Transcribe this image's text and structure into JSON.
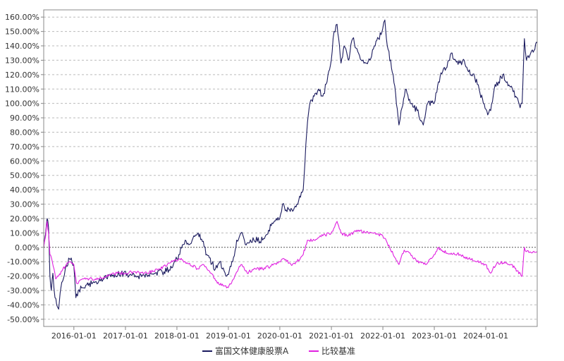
{
  "chart_data": {
    "type": "line",
    "y_ticks": [
      "160.00%",
      "150.00%",
      "140.00%",
      "130.00%",
      "120.00%",
      "110.00%",
      "100.00%",
      "90.00%",
      "80.00%",
      "70.00%",
      "60.00%",
      "50.00%",
      "40.00%",
      "30.00%",
      "20.00%",
      "10.00%",
      "0.00%",
      "-10.00%",
      "-20.00%",
      "-30.00%",
      "-40.00%",
      "-50.00%"
    ],
    "x_ticks": [
      "2016-01-01",
      "2017-01-01",
      "2018-01-01",
      "2019-01-01",
      "2020-01-01",
      "2021-01-01",
      "2022-01-01",
      "2023-01-01",
      "2024-01-01"
    ],
    "ylim": [
      -55,
      165
    ],
    "xlim": [
      "2015-06-01",
      "2024-12-31"
    ],
    "grid": true,
    "legend_position": "bottom",
    "series": [
      {
        "name": "富国文体健康股票A",
        "color": "#1a1a5e",
        "points": [
          [
            "2015-06-01",
            0
          ],
          [
            "2015-06-15",
            10
          ],
          [
            "2015-06-25",
            20
          ],
          [
            "2015-07-05",
            14
          ],
          [
            "2015-07-15",
            -20
          ],
          [
            "2015-07-25",
            -30
          ],
          [
            "2015-08-05",
            -18
          ],
          [
            "2015-08-20",
            -35
          ],
          [
            "2015-09-01",
            -40
          ],
          [
            "2015-09-15",
            -43
          ],
          [
            "2015-10-01",
            -28
          ],
          [
            "2015-11-01",
            -15
          ],
          [
            "2015-12-01",
            -8
          ],
          [
            "2015-12-31",
            -12
          ],
          [
            "2016-01-15",
            -35
          ],
          [
            "2016-02-01",
            -30
          ],
          [
            "2016-03-01",
            -28
          ],
          [
            "2016-04-01",
            -26
          ],
          [
            "2016-06-01",
            -24
          ],
          [
            "2016-08-01",
            -22
          ],
          [
            "2016-10-01",
            -20
          ],
          [
            "2016-12-01",
            -18
          ],
          [
            "2017-02-01",
            -19
          ],
          [
            "2017-04-01",
            -20
          ],
          [
            "2017-06-01",
            -19
          ],
          [
            "2017-08-01",
            -18
          ],
          [
            "2017-10-01",
            -17
          ],
          [
            "2017-12-01",
            -14
          ],
          [
            "2018-01-15",
            -5
          ],
          [
            "2018-03-01",
            5
          ],
          [
            "2018-04-01",
            2
          ],
          [
            "2018-05-01",
            8
          ],
          [
            "2018-06-01",
            10
          ],
          [
            "2018-07-01",
            4
          ],
          [
            "2018-08-01",
            -5
          ],
          [
            "2018-10-01",
            -15
          ],
          [
            "2018-11-01",
            -10
          ],
          [
            "2018-12-20",
            -20
          ],
          [
            "2019-02-01",
            -10
          ],
          [
            "2019-03-01",
            5
          ],
          [
            "2019-04-01",
            10
          ],
          [
            "2019-05-01",
            2
          ],
          [
            "2019-07-01",
            5
          ],
          [
            "2019-09-01",
            5
          ],
          [
            "2019-11-01",
            15
          ],
          [
            "2019-12-31",
            20
          ],
          [
            "2020-01-20",
            30
          ],
          [
            "2020-02-15",
            26
          ],
          [
            "2020-04-01",
            25
          ],
          [
            "2020-05-01",
            30
          ],
          [
            "2020-06-15",
            40
          ],
          [
            "2020-07-10",
            80
          ],
          [
            "2020-08-01",
            100
          ],
          [
            "2020-09-01",
            105
          ],
          [
            "2020-10-01",
            110
          ],
          [
            "2020-11-01",
            105
          ],
          [
            "2020-12-01",
            115
          ],
          [
            "2020-12-31",
            130
          ],
          [
            "2021-01-20",
            150
          ],
          [
            "2021-02-10",
            155
          ],
          [
            "2021-03-10",
            128
          ],
          [
            "2021-04-01",
            140
          ],
          [
            "2021-05-01",
            130
          ],
          [
            "2021-06-01",
            145
          ],
          [
            "2021-07-01",
            138
          ],
          [
            "2021-08-01",
            130
          ],
          [
            "2021-09-01",
            128
          ],
          [
            "2021-10-01",
            130
          ],
          [
            "2021-11-01",
            140
          ],
          [
            "2021-12-01",
            145
          ],
          [
            "2021-12-31",
            152
          ],
          [
            "2022-01-15",
            158
          ],
          [
            "2022-02-01",
            140
          ],
          [
            "2022-03-15",
            120
          ],
          [
            "2022-04-25",
            85
          ],
          [
            "2022-05-10",
            95
          ],
          [
            "2022-06-15",
            110
          ],
          [
            "2022-07-15",
            100
          ],
          [
            "2022-09-01",
            95
          ],
          [
            "2022-10-15",
            85
          ],
          [
            "2022-11-15",
            100
          ],
          [
            "2022-12-31",
            100
          ],
          [
            "2023-01-31",
            115
          ],
          [
            "2023-03-01",
            122
          ],
          [
            "2023-04-01",
            125
          ],
          [
            "2023-05-01",
            135
          ],
          [
            "2023-06-01",
            130
          ],
          [
            "2023-07-01",
            128
          ],
          [
            "2023-08-01",
            130
          ],
          [
            "2023-09-01",
            122
          ],
          [
            "2023-10-15",
            118
          ],
          [
            "2023-11-15",
            110
          ],
          [
            "2023-12-15",
            100
          ],
          [
            "2024-01-15",
            92
          ],
          [
            "2024-02-05",
            95
          ],
          [
            "2024-03-01",
            110
          ],
          [
            "2024-04-01",
            115
          ],
          [
            "2024-05-01",
            120
          ],
          [
            "2024-06-01",
            115
          ],
          [
            "2024-07-01",
            112
          ],
          [
            "2024-08-01",
            105
          ],
          [
            "2024-09-01",
            97
          ],
          [
            "2024-09-15",
            100
          ],
          [
            "2024-10-01",
            145
          ],
          [
            "2024-10-15",
            130
          ],
          [
            "2024-11-15",
            135
          ],
          [
            "2024-12-31",
            142
          ]
        ]
      },
      {
        "name": "比较基准",
        "color": "#e020e0",
        "points": [
          [
            "2015-06-01",
            0
          ],
          [
            "2015-06-15",
            8
          ],
          [
            "2015-06-25",
            18
          ],
          [
            "2015-07-05",
            10
          ],
          [
            "2015-07-15",
            -5
          ],
          [
            "2015-08-01",
            -10
          ],
          [
            "2015-08-25",
            -22
          ],
          [
            "2015-09-15",
            -20
          ],
          [
            "2015-10-15",
            -15
          ],
          [
            "2015-12-01",
            -10
          ],
          [
            "2015-12-31",
            -12
          ],
          [
            "2016-01-20",
            -25
          ],
          [
            "2016-03-01",
            -22
          ],
          [
            "2016-06-01",
            -22
          ],
          [
            "2016-09-01",
            -20
          ],
          [
            "2016-11-01",
            -18
          ],
          [
            "2016-12-31",
            -18
          ],
          [
            "2017-03-01",
            -17
          ],
          [
            "2017-06-01",
            -18
          ],
          [
            "2017-09-01",
            -15
          ],
          [
            "2017-12-01",
            -10
          ],
          [
            "2018-01-20",
            -8
          ],
          [
            "2018-03-01",
            -10
          ],
          [
            "2018-06-01",
            -15
          ],
          [
            "2018-07-01",
            -12
          ],
          [
            "2018-09-01",
            -18
          ],
          [
            "2018-10-15",
            -25
          ],
          [
            "2018-12-31",
            -28
          ],
          [
            "2019-02-15",
            -20
          ],
          [
            "2019-04-01",
            -12
          ],
          [
            "2019-05-15",
            -18
          ],
          [
            "2019-07-01",
            -15
          ],
          [
            "2019-09-01",
            -15
          ],
          [
            "2019-11-01",
            -13
          ],
          [
            "2019-12-31",
            -10
          ],
          [
            "2020-02-01",
            -8
          ],
          [
            "2020-03-20",
            -12
          ],
          [
            "2020-05-01",
            -10
          ],
          [
            "2020-06-15",
            -5
          ],
          [
            "2020-07-15",
            5
          ],
          [
            "2020-09-01",
            5
          ],
          [
            "2020-11-01",
            8
          ],
          [
            "2020-12-31",
            10
          ],
          [
            "2021-02-10",
            18
          ],
          [
            "2021-03-10",
            10
          ],
          [
            "2021-05-01",
            8
          ],
          [
            "2021-07-01",
            12
          ],
          [
            "2021-09-01",
            10
          ],
          [
            "2021-11-01",
            10
          ],
          [
            "2021-12-31",
            8
          ],
          [
            "2022-02-01",
            3
          ],
          [
            "2022-03-15",
            -5
          ],
          [
            "2022-04-25",
            -12
          ],
          [
            "2022-06-01",
            -2
          ],
          [
            "2022-07-01",
            -3
          ],
          [
            "2022-09-01",
            -10
          ],
          [
            "2022-10-31",
            -12
          ],
          [
            "2022-12-31",
            -5
          ],
          [
            "2023-01-31",
            0
          ],
          [
            "2023-03-01",
            -3
          ],
          [
            "2023-05-01",
            -4
          ],
          [
            "2023-07-01",
            -5
          ],
          [
            "2023-09-01",
            -8
          ],
          [
            "2023-11-01",
            -10
          ],
          [
            "2023-12-31",
            -12
          ],
          [
            "2024-02-05",
            -18
          ],
          [
            "2024-02-20",
            -15
          ],
          [
            "2024-03-15",
            -12
          ],
          [
            "2024-05-15",
            -10
          ],
          [
            "2024-07-01",
            -12
          ],
          [
            "2024-09-15",
            -20
          ],
          [
            "2024-10-01",
            0
          ],
          [
            "2024-10-15",
            -3
          ],
          [
            "2024-12-31",
            -3
          ]
        ]
      }
    ]
  }
}
